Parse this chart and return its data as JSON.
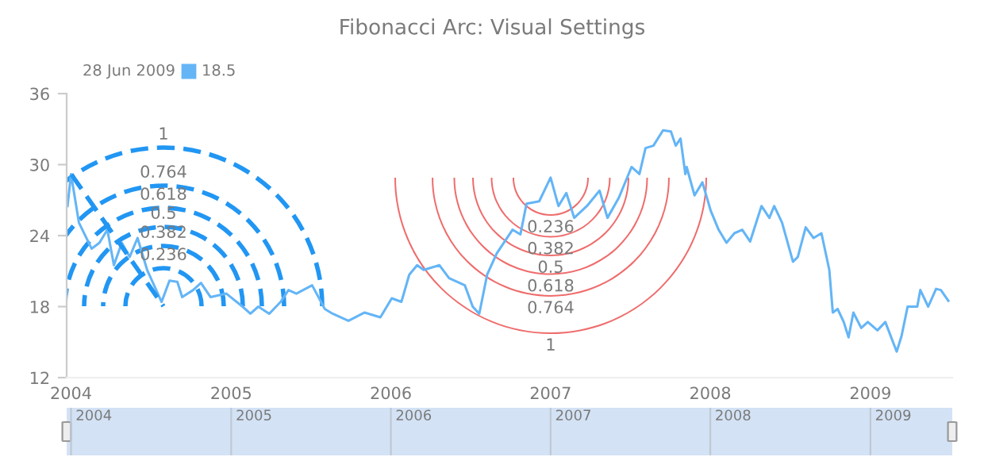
{
  "chart_data": {
    "type": "line",
    "title": "Fibonacci Arc: Visual Settings",
    "annotations": [
      "28 Jun 2009",
      "18.5",
      "1",
      "0.764",
      "0.618",
      "0.5",
      "0.382",
      "0.236",
      "0.236",
      "0.382",
      "0.5",
      "0.618",
      "0.764",
      "1",
      "2004",
      "2005",
      "2006",
      "2007",
      "2008",
      "2009"
    ],
    "x": [
      "2003-12-24",
      "2004-01-01",
      "2004-01-19",
      "2004-02-17",
      "2004-03-06",
      "2004-03-24",
      "2004-04-08",
      "2004-04-26",
      "2004-05-14",
      "2004-06-01",
      "2004-06-23",
      "2004-07-26",
      "2004-08-13",
      "2004-08-31",
      "2004-09-11",
      "2004-10-06",
      "2004-10-24",
      "2004-11-15",
      "2004-12-21",
      "2005-01-27",
      "2005-02-14",
      "2005-03-04",
      "2005-03-29",
      "2005-04-24",
      "2005-05-12",
      "2005-05-30",
      "2005-07-05",
      "2005-08-03",
      "2005-08-21",
      "2005-09-26",
      "2005-11-02",
      "2005-12-08",
      "2006-01-03",
      "2006-01-25",
      "2006-02-12",
      "2006-03-02",
      "2006-03-17",
      "2006-04-22",
      "2006-05-14",
      "2006-06-19",
      "2006-07-07",
      "2006-07-22",
      "2006-08-09",
      "2006-08-31",
      "2006-10-06",
      "2006-10-24",
      "2006-11-07",
      "2006-12-06",
      "2007-01-01",
      "2007-01-19",
      "2007-02-06",
      "2007-02-24",
      "2007-03-25",
      "2007-04-23",
      "2007-05-11",
      "2007-06-06",
      "2007-07-05",
      "2007-07-23",
      "2007-08-06",
      "2007-08-24",
      "2007-09-15",
      "2007-10-03",
      "2007-10-14",
      "2007-10-25",
      "2007-11-05",
      "2007-11-08",
      "2007-11-26",
      "2007-12-14",
      "2008-01-02",
      "2008-01-20",
      "2008-02-07",
      "2008-02-25",
      "2008-03-14",
      "2008-04-01",
      "2008-04-27",
      "2008-05-15",
      "2008-05-26",
      "2008-06-13",
      "2008-07-08",
      "2008-07-19",
      "2008-08-06",
      "2008-08-24",
      "2008-09-11",
      "2008-09-29",
      "2008-10-07",
      "2008-10-18",
      "2008-11-01",
      "2008-11-12",
      "2008-11-23",
      "2008-12-11",
      "2008-12-26",
      "2009-01-17",
      "2009-02-04",
      "2009-03-02",
      "2009-03-13",
      "2009-03-27",
      "2009-04-18",
      "2009-04-25",
      "2009-05-13",
      "2009-05-31",
      "2009-06-11",
      "2009-06-28"
    ],
    "series": [
      {
        "color": "#64b5f6",
        "values": [
          26.5,
          29.2,
          25.1,
          22.9,
          23.4,
          24.5,
          21.5,
          23.4,
          22.2,
          23.8,
          21.1,
          18.4,
          20.2,
          20.1,
          18.8,
          19.4,
          20.0,
          18.8,
          19.1,
          18.0,
          17.4,
          18.0,
          17.4,
          18.4,
          19.4,
          19.1,
          19.8,
          17.8,
          17.4,
          16.8,
          17.5,
          17.1,
          18.7,
          18.4,
          20.7,
          21.5,
          21.1,
          21.5,
          20.4,
          19.8,
          18.0,
          17.4,
          20.7,
          22.5,
          24.5,
          24.1,
          26.7,
          26.9,
          28.9,
          26.5,
          27.6,
          25.5,
          26.5,
          27.8,
          25.5,
          27.2,
          29.8,
          29.2,
          31.4,
          31.6,
          32.9,
          32.8,
          31.6,
          32.2,
          29.2,
          29.8,
          27.4,
          28.5,
          26.1,
          24.5,
          23.4,
          24.2,
          24.5,
          23.5,
          26.5,
          25.5,
          26.5,
          25.1,
          21.8,
          22.2,
          24.7,
          23.8,
          24.2,
          21.1,
          17.5,
          17.8,
          16.7,
          15.4,
          17.5,
          16.2,
          16.7,
          16.0,
          16.7,
          14.2,
          15.5,
          18.0,
          18.0,
          19.4,
          18.0,
          19.5,
          19.4,
          18.5
        ]
      }
    ],
    "xlim": [
      "2003-12-22",
      "2009-07-07"
    ],
    "xticks": [
      {
        "value": "2004-01-01",
        "label": "2004"
      },
      {
        "value": "2005-01-01",
        "label": "2005"
      },
      {
        "value": "2006-01-01",
        "label": "2006"
      },
      {
        "value": "2007-01-01",
        "label": "2007"
      },
      {
        "value": "2008-01-01",
        "label": "2008"
      },
      {
        "value": "2009-01-01",
        "label": "2009"
      }
    ],
    "ylim": [
      12,
      36
    ],
    "yticks": [
      12,
      18,
      24,
      30,
      36
    ]
  }
}
